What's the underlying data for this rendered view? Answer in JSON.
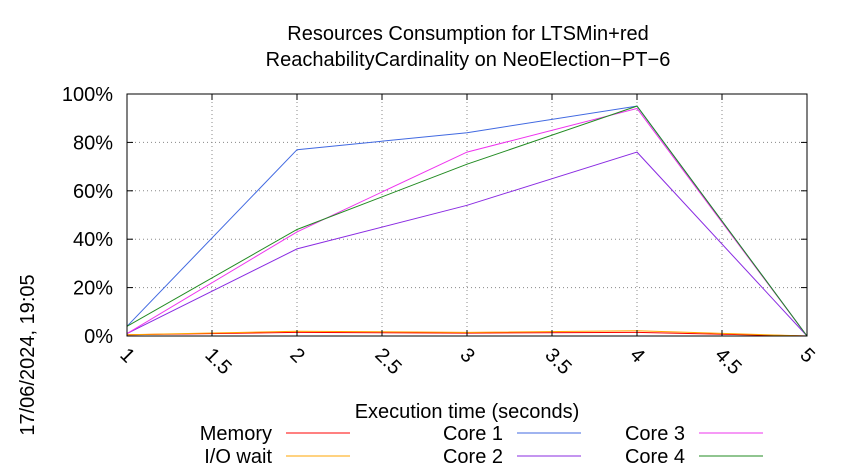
{
  "chart_data": {
    "type": "line",
    "title": [
      "Resources Consumption for LTSMin+red",
      "ReachabilityCardinality on NeoElection−PT−6"
    ],
    "xlabel": "Execution time (seconds)",
    "ylabel": "",
    "side_label": "17/06/2024, 19:05",
    "xlim": [
      1,
      5
    ],
    "ylim": [
      0,
      100
    ],
    "x_ticks": [
      1,
      1.5,
      2,
      2.5,
      3,
      3.5,
      4,
      4.5,
      5
    ],
    "x_tick_labels": [
      "1",
      "1.5",
      "2",
      "2.5",
      "3",
      "3.5",
      "4",
      "4.5",
      "5"
    ],
    "y_ticks": [
      0,
      20,
      40,
      60,
      80,
      100
    ],
    "y_tick_labels": [
      "0%",
      "20%",
      "40%",
      "60%",
      "80%",
      "100%"
    ],
    "grid": true,
    "legend_position": "bottom",
    "x": [
      1,
      2,
      3,
      4,
      5
    ],
    "series": [
      {
        "name": "Memory",
        "color": "#ff0000",
        "values": [
          0.5,
          1.5,
          1.2,
          1.5,
          0
        ]
      },
      {
        "name": "I/O wait",
        "color": "#ffa500",
        "values": [
          0.5,
          2.0,
          1.5,
          2.2,
          0
        ]
      },
      {
        "name": "Core 1",
        "color": "#4169e1",
        "values": [
          4,
          77,
          84,
          95,
          0
        ]
      },
      {
        "name": "Core 2",
        "color": "#8a2be2",
        "values": [
          1,
          36,
          54,
          76,
          0
        ]
      },
      {
        "name": "Core 3",
        "color": "#ee33ee",
        "values": [
          1,
          43,
          76,
          94,
          0
        ]
      },
      {
        "name": "Core 4",
        "color": "#228b22",
        "values": [
          4,
          44,
          71,
          95,
          0
        ]
      }
    ]
  }
}
